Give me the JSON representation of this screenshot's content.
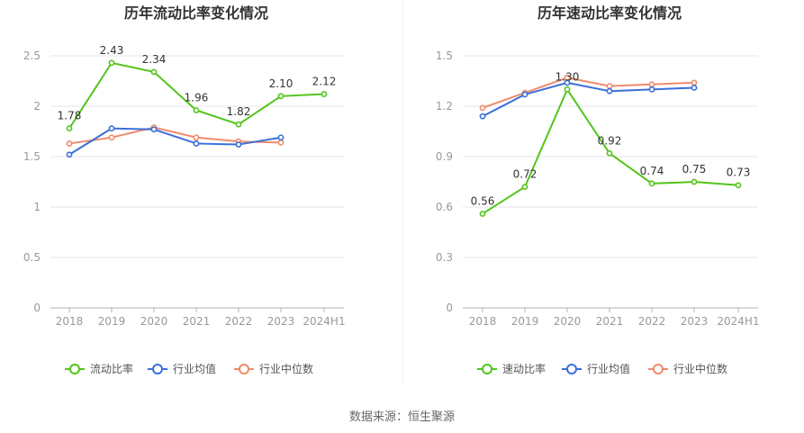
{
  "source": "数据来源：恒生聚源",
  "colors": {
    "main": "#52c41a",
    "avg": "#3a6fd8",
    "median": "#f08a6c",
    "axis": "#999999",
    "grid": "#e6e6ee",
    "title": "#333333"
  },
  "chart_data": [
    {
      "type": "line",
      "title": "历年流动比率变化情况",
      "categories": [
        "2018",
        "2019",
        "2020",
        "2021",
        "2022",
        "2023",
        "2024H1"
      ],
      "yticks": [
        "0",
        "0.5",
        "1",
        "1.5",
        "2",
        "2.5"
      ],
      "ylim": [
        0,
        2.5
      ],
      "grid": true,
      "legend_position": "bottom",
      "series": [
        {
          "name": "流动比率",
          "color": "#52c41a",
          "labeled": true,
          "values": [
            1.78,
            2.43,
            2.34,
            1.96,
            1.82,
            2.1,
            2.12
          ],
          "labels": [
            "1.78",
            "2.43",
            "2.34",
            "1.96",
            "1.82",
            "2.10",
            "2.12"
          ]
        },
        {
          "name": "行业均值",
          "color": "#3a6fd8",
          "labeled": false,
          "values": [
            1.52,
            1.78,
            1.77,
            1.63,
            1.62,
            1.69,
            null
          ]
        },
        {
          "name": "行业中位数",
          "color": "#f08a6c",
          "labeled": false,
          "values": [
            1.63,
            1.69,
            1.79,
            1.69,
            1.65,
            1.64,
            null
          ]
        }
      ]
    },
    {
      "type": "line",
      "title": "历年速动比率变化情况",
      "categories": [
        "2018",
        "2019",
        "2020",
        "2021",
        "2022",
        "2023",
        "2024H1"
      ],
      "yticks": [
        "0",
        "0.3",
        "0.6",
        "0.9",
        "1.2",
        "1.5"
      ],
      "ylim": [
        0,
        1.5
      ],
      "grid": true,
      "legend_position": "bottom",
      "series": [
        {
          "name": "速动比率",
          "color": "#52c41a",
          "labeled": true,
          "values": [
            0.56,
            0.72,
            1.3,
            0.92,
            0.74,
            0.75,
            0.73
          ],
          "labels": [
            "0.56",
            "0.72",
            "1.30",
            "0.92",
            "0.74",
            "0.75",
            "0.73"
          ]
        },
        {
          "name": "行业均值",
          "color": "#3a6fd8",
          "labeled": false,
          "values": [
            1.14,
            1.27,
            1.34,
            1.29,
            1.3,
            1.31,
            null
          ]
        },
        {
          "name": "行业中位数",
          "color": "#f08a6c",
          "labeled": false,
          "values": [
            1.19,
            1.28,
            1.37,
            1.32,
            1.33,
            1.34,
            null
          ]
        }
      ]
    }
  ]
}
